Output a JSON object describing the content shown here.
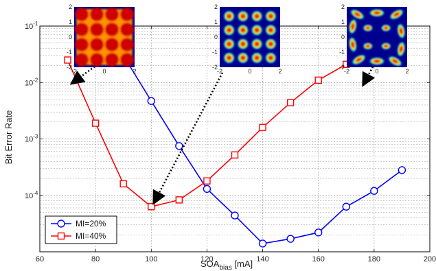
{
  "chart_data": {
    "type": "line",
    "title": "",
    "xlabel": "SOA",
    "xlabel_sub": "bias",
    "xlabel_unit": " [mA]",
    "ylabel": "Bit Error Rate",
    "xlim": [
      60,
      200
    ],
    "ylim": [
      1e-05,
      0.1
    ],
    "yscale": "log",
    "grid": true,
    "legend_position": "bottom-left",
    "x_ticks": [
      60,
      80,
      100,
      120,
      140,
      160,
      180,
      200
    ],
    "y_ticks": [
      {
        "base": "10",
        "exp": "-1",
        "value": 0.1
      },
      {
        "base": "10",
        "exp": "-2",
        "value": 0.01
      },
      {
        "base": "10",
        "exp": "-3",
        "value": 0.001
      },
      {
        "base": "10",
        "exp": "-4",
        "value": 0.0001
      }
    ],
    "series": [
      {
        "name": "MI=20%",
        "color": "#0000ff",
        "marker": "circle",
        "x": [
          90,
          100,
          110,
          120,
          130,
          140,
          150,
          160,
          170,
          180,
          190
        ],
        "y": [
          0.03,
          0.0047,
          0.00075,
          0.00013,
          4.4e-05,
          1.4e-05,
          1.7e-05,
          2.2e-05,
          6.3e-05,
          0.00012,
          0.00028
        ]
      },
      {
        "name": "MI=40%",
        "color": "#ff0000",
        "marker": "square",
        "x": [
          70,
          80,
          90,
          100,
          110,
          120,
          130,
          140,
          150,
          160,
          170
        ],
        "y": [
          0.025,
          0.0019,
          0.00016,
          6.3e-05,
          8.3e-05,
          0.00018,
          0.00052,
          0.0016,
          0.0044,
          0.011,
          0.021
        ]
      }
    ],
    "insets": [
      {
        "pattern": "square-filled",
        "x_ticks": [
          "-2",
          "0",
          "2"
        ],
        "y_ticks": [
          "2",
          "1",
          "0",
          "-1",
          "-2"
        ]
      },
      {
        "pattern": "grid-4x4",
        "x_ticks": [
          "-2",
          "0",
          "2"
        ],
        "y_ticks": [
          "2",
          "1",
          "0",
          "-1",
          "-2"
        ]
      },
      {
        "pattern": "distorted",
        "x_ticks": [
          "-2",
          "0",
          "2"
        ],
        "y_ticks": [
          "2",
          "1",
          "0",
          "-1",
          "-2"
        ]
      }
    ]
  }
}
